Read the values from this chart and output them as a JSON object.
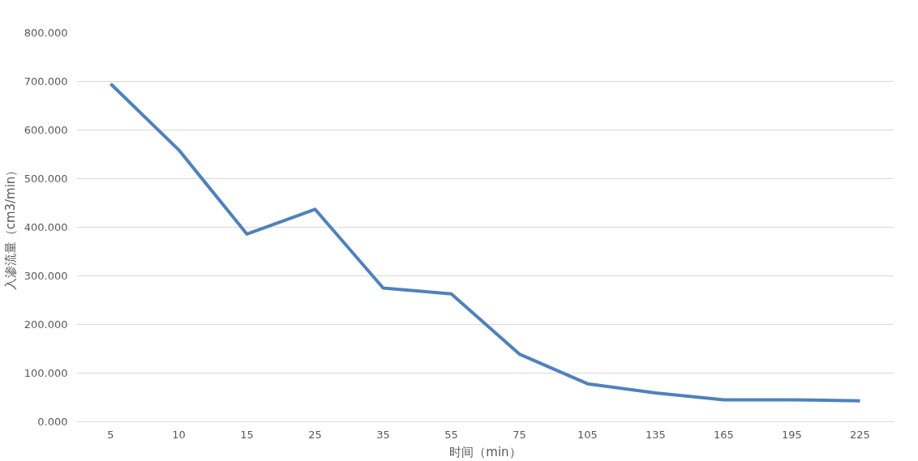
{
  "chart_data": {
    "type": "line",
    "xlabel": "时间（min）",
    "ylabel": "入渗流量（cm3/min）",
    "categories": [
      "5",
      "10",
      "15",
      "25",
      "35",
      "55",
      "75",
      "105",
      "135",
      "165",
      "195",
      "225"
    ],
    "series": [
      {
        "color": "#4f81bd",
        "values": [
          695,
          559,
          386,
          437,
          275,
          263,
          139,
          78,
          59,
          45,
          45,
          43
        ]
      }
    ],
    "ylim": [
      0,
      800
    ],
    "yticks": [
      {
        "value": 0,
        "label": "0.000"
      },
      {
        "value": 100,
        "label": "100.000"
      },
      {
        "value": 200,
        "label": "200.000"
      },
      {
        "value": 300,
        "label": "300.000"
      },
      {
        "value": 400,
        "label": "400.000"
      },
      {
        "value": 500,
        "label": "500.000"
      },
      {
        "value": 600,
        "label": "600.000"
      },
      {
        "value": 700,
        "label": "700.000"
      },
      {
        "value": 800,
        "label": "800.000"
      }
    ],
    "grid": "y",
    "marker": "none",
    "line_style": "solid"
  }
}
